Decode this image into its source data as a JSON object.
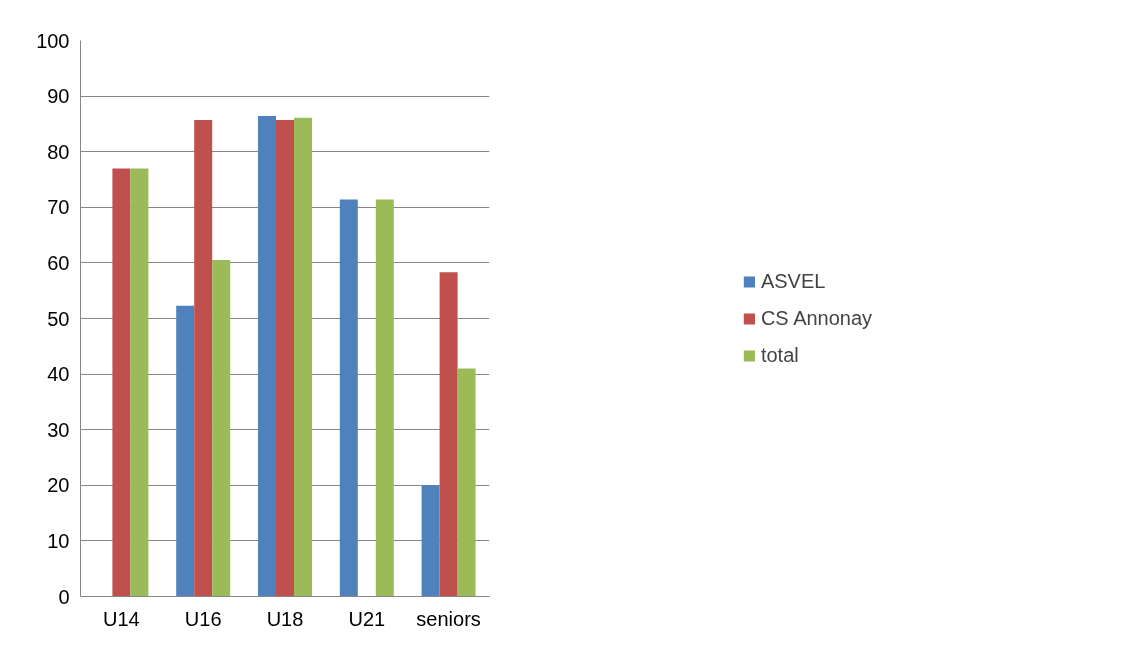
{
  "chart_data": {
    "type": "bar",
    "categories": [
      "U14",
      "U16",
      "U18",
      "U21",
      "seniors"
    ],
    "series": [
      {
        "name": "ASVEL",
        "color": "#4f81bd",
        "values": [
          0,
          52.3,
          86.4,
          71.4,
          20
        ]
      },
      {
        "name": "CS Annonay",
        "color": "#c0504d",
        "values": [
          77,
          85.7,
          85.7,
          0,
          58.3
        ]
      },
      {
        "name": "total",
        "color": "#9bbb59",
        "values": [
          77,
          60.5,
          86.1,
          71.4,
          41
        ]
      }
    ],
    "ylim": [
      0,
      100
    ],
    "yticks": [
      0,
      10,
      20,
      30,
      40,
      50,
      60,
      70,
      80,
      90,
      100
    ],
    "grid": "y",
    "legend": "right"
  }
}
